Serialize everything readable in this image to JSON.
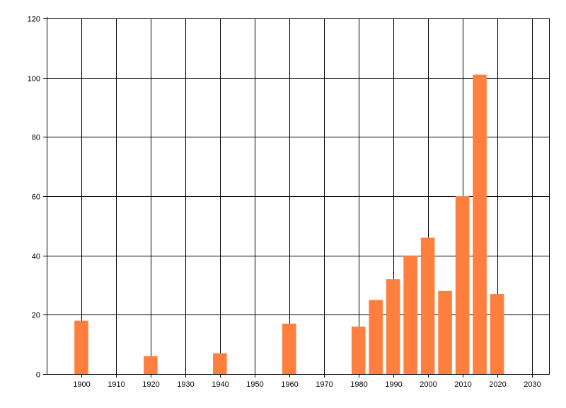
{
  "chart_data": {
    "type": "bar",
    "title": "",
    "xlabel": "",
    "ylabel": "",
    "xlim": [
      1890,
      2035
    ],
    "ylim": [
      0,
      120
    ],
    "x_ticks": [
      1900,
      1910,
      1920,
      1930,
      1940,
      1950,
      1960,
      1970,
      1980,
      1990,
      2000,
      2010,
      2020,
      2030
    ],
    "y_ticks": [
      0,
      20,
      40,
      60,
      80,
      100,
      120
    ],
    "grid": true,
    "legend": "none",
    "bar_width_years": 4,
    "bar_color": "#FF7F3F",
    "series": [
      {
        "name": "",
        "x": [
          1900,
          1920,
          1940,
          1960,
          1980,
          1985,
          1990,
          1995,
          2000,
          2005,
          2010,
          2015,
          2020
        ],
        "values": [
          18,
          6,
          7,
          17,
          16,
          25,
          32,
          40,
          46,
          28,
          60,
          101,
          27
        ]
      }
    ]
  }
}
